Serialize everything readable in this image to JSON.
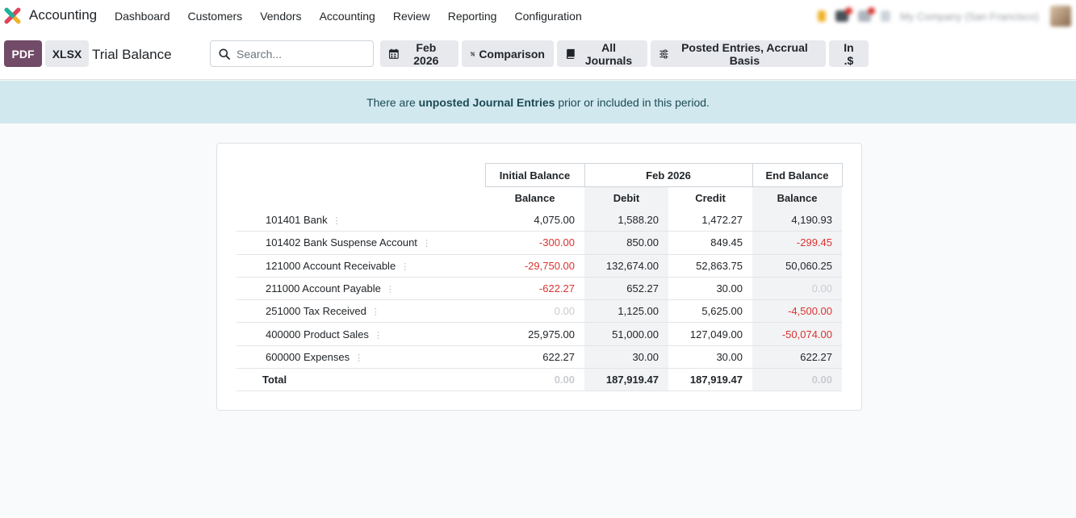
{
  "navbar": {
    "app_name": "Accounting",
    "menu": [
      "Dashboard",
      "Customers",
      "Vendors",
      "Accounting",
      "Review",
      "Reporting",
      "Configuration"
    ],
    "company": "My Company (San Francisco)"
  },
  "control_panel": {
    "pdf_label": "PDF",
    "xlsx_label": "XLSX",
    "title": "Trial Balance",
    "search_placeholder": "Search...",
    "filters": {
      "date": "Feb 2026",
      "comparison": "Comparison",
      "journals": "All Journals",
      "options": "Posted Entries, Accrual Basis",
      "currency": "In .$"
    }
  },
  "banner": {
    "pre": "There are ",
    "bold": "unposted Journal Entries",
    "post": " prior or included in this period."
  },
  "report": {
    "group_headers": {
      "initial": "Initial Balance",
      "period": "Feb 2026",
      "end": "End Balance"
    },
    "column_headers": {
      "initial_balance": "Balance",
      "debit": "Debit",
      "credit": "Credit",
      "end_balance": "Balance"
    },
    "rows": [
      {
        "account": "101401 Bank",
        "initial": "4,075.00",
        "debit": "1,588.20",
        "credit": "1,472.27",
        "end": "4,190.93"
      },
      {
        "account": "101402 Bank Suspense Account",
        "initial": "-300.00",
        "debit": "850.00",
        "credit": "849.45",
        "end": "-299.45"
      },
      {
        "account": "121000 Account Receivable",
        "initial": "-29,750.00",
        "debit": "132,674.00",
        "credit": "52,863.75",
        "end": "50,060.25"
      },
      {
        "account": "211000 Account Payable",
        "initial": "-622.27",
        "debit": "652.27",
        "credit": "30.00",
        "end": "0.00"
      },
      {
        "account": "251000 Tax Received",
        "initial": "0.00",
        "debit": "1,125.00",
        "credit": "5,625.00",
        "end": "-4,500.00"
      },
      {
        "account": "400000 Product Sales",
        "initial": "25,975.00",
        "debit": "51,000.00",
        "credit": "127,049.00",
        "end": "-50,074.00"
      },
      {
        "account": "600000 Expenses",
        "initial": "622.27",
        "debit": "30.00",
        "credit": "30.00",
        "end": "622.27"
      }
    ],
    "total": {
      "label": "Total",
      "initial": "0.00",
      "debit": "187,919.47",
      "credit": "187,919.47",
      "end": "0.00"
    }
  },
  "colors": {
    "primary": "#714b67",
    "negative": "#d9332f",
    "zero": "#c9ccd1",
    "banner_bg": "#d1e8ee"
  }
}
